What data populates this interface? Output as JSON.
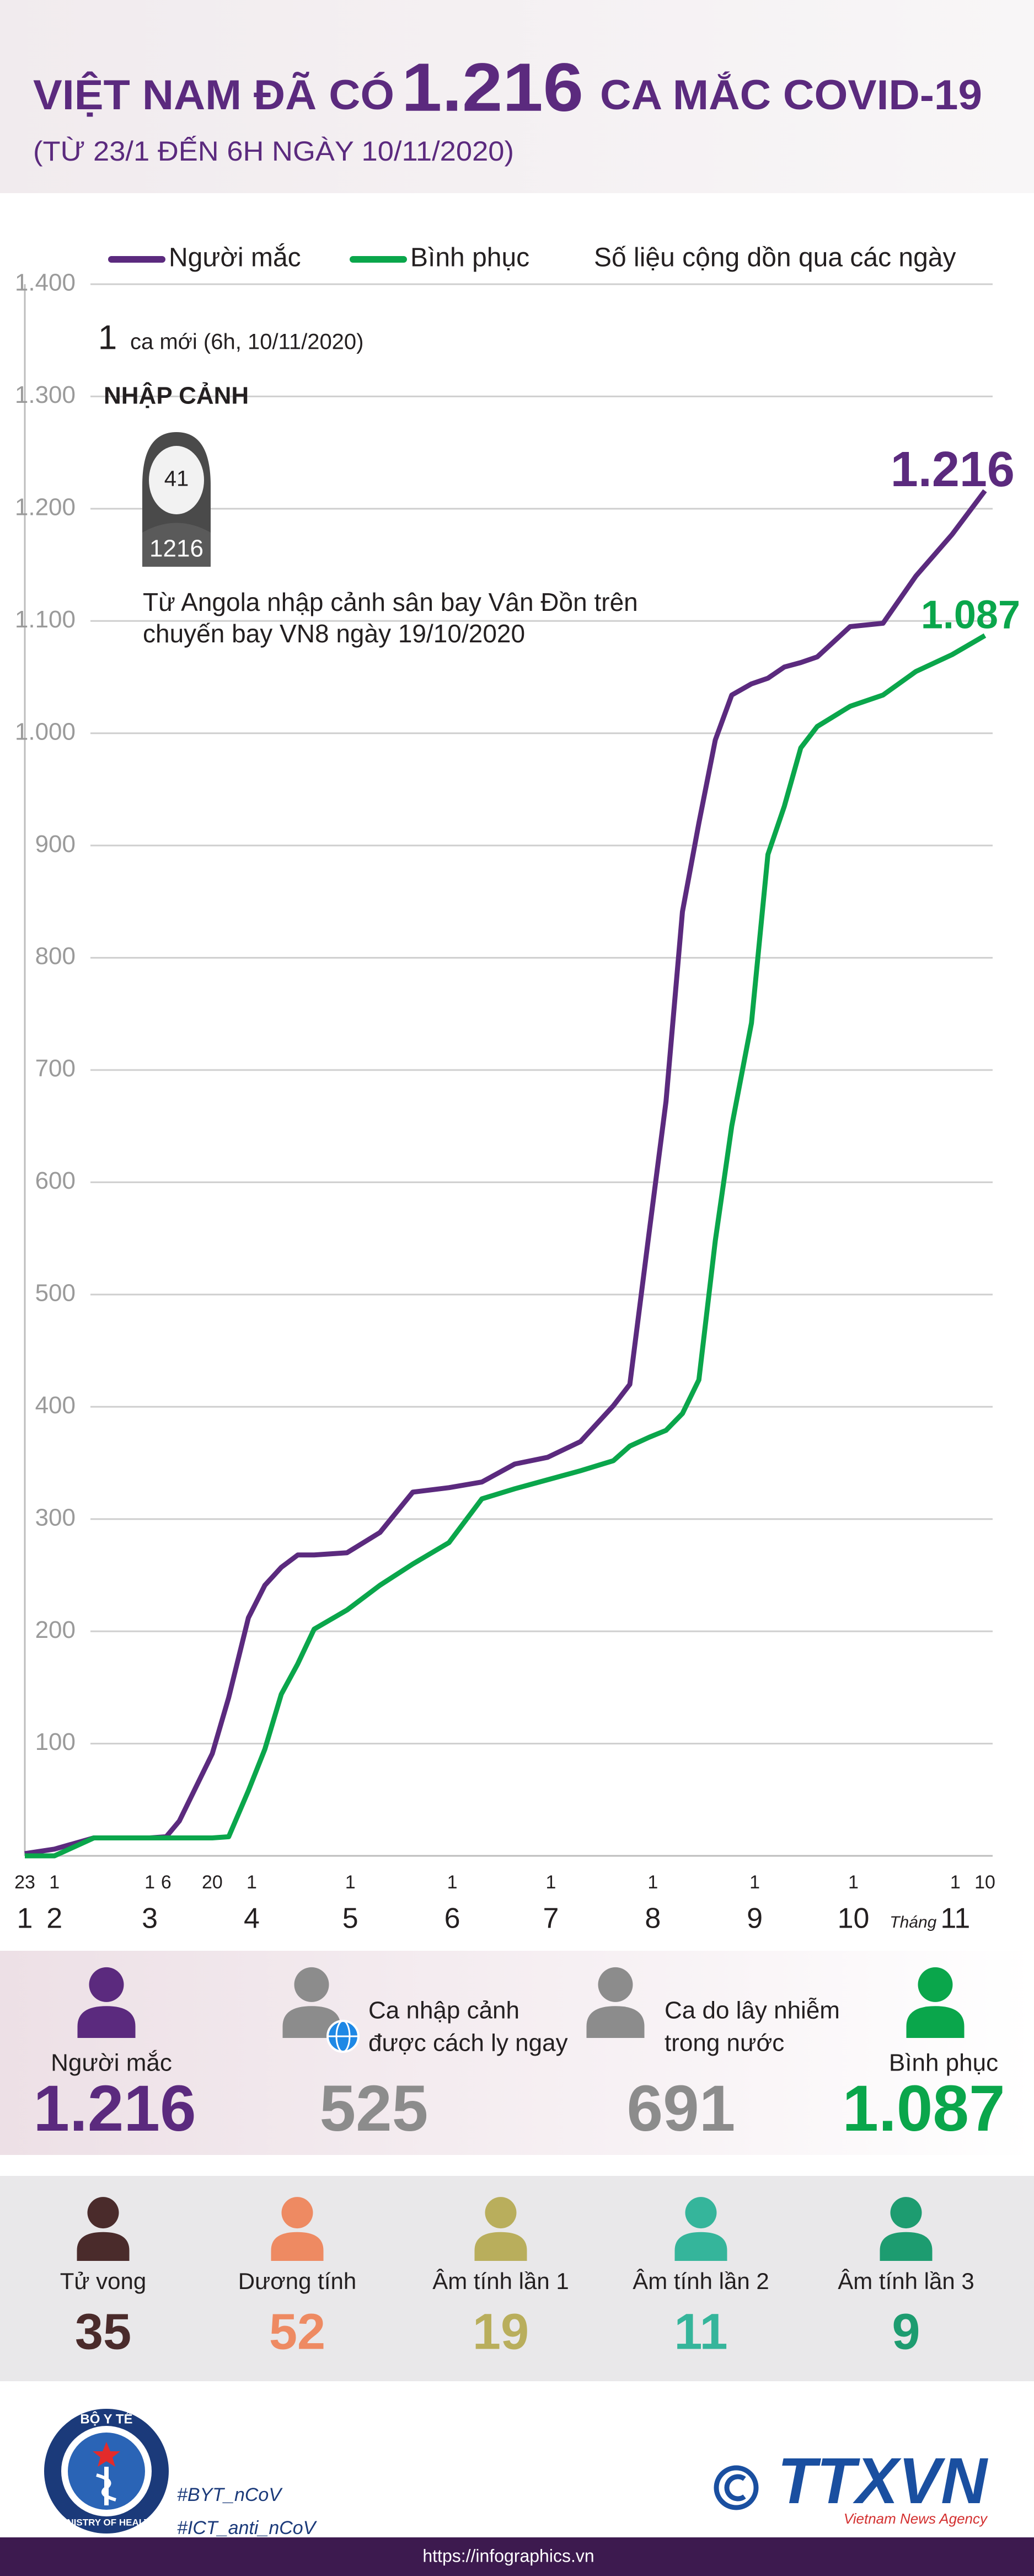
{
  "header": {
    "title_parts": [
      "VIỆT NAM ĐÃ CÓ",
      "1.216",
      "CA MẮC COVID-19"
    ],
    "subtitle": "(TỪ 23/1 ĐẾN 6H NGÀY 10/11/2020)"
  },
  "chart_data": {
    "type": "line",
    "legend_note": "Số liệu cộng dồn qua các ngày",
    "x": [
      "23/1",
      "1/2",
      "13/2",
      "1/3",
      "6/3",
      "10/3",
      "20/3",
      "25/3",
      "31/3",
      "5/4",
      "10/4",
      "15/4",
      "20/4",
      "30/4",
      "10/5",
      "20/5",
      "31/5",
      "10/6",
      "20/6",
      "30/6",
      "10/7",
      "20/7",
      "25/7",
      "31/7",
      "5/8",
      "10/8",
      "15/8",
      "20/8",
      "25/8",
      "31/8",
      "5/9",
      "10/9",
      "15/9",
      "20/9",
      "30/9",
      "10/10",
      "20/10",
      "31/10",
      "10/11"
    ],
    "xlim": [
      "23/1",
      "10/11"
    ],
    "series": [
      {
        "name": "Người mắc",
        "color": "#5b2a7e",
        "values": [
          2,
          6,
          16,
          16,
          17,
          31,
          91,
          141,
          212,
          241,
          257,
          268,
          268,
          270,
          288,
          324,
          328,
          333,
          349,
          355,
          369,
          401,
          420,
          558,
          672,
          841,
          920,
          994,
          1034,
          1044,
          1049,
          1059,
          1063,
          1068,
          1095,
          1098,
          1140,
          1177,
          1216
        ],
        "value_labels": [
          null,
          null,
          null,
          null,
          null,
          null,
          null,
          null,
          null,
          null,
          null,
          null,
          null,
          null,
          null,
          null,
          null,
          null,
          null,
          null,
          null,
          null,
          null,
          null,
          null,
          null,
          null,
          null,
          null,
          null,
          null,
          null,
          null,
          null,
          null,
          null,
          null,
          null,
          "1.216"
        ]
      },
      {
        "name": "Bình phục",
        "color": "#0aa64b",
        "values": [
          0,
          0,
          16,
          16,
          16,
          16,
          16,
          17,
          58,
          95,
          144,
          171,
          202,
          219,
          241,
          260,
          279,
          318,
          327,
          335,
          343,
          352,
          365,
          373,
          379,
          394,
          424,
          548,
          650,
          742,
          892,
          935,
          987,
          1006,
          1024,
          1034,
          1055,
          1070,
          1087
        ],
        "value_labels": [
          null,
          null,
          null,
          null,
          null,
          null,
          null,
          null,
          null,
          null,
          null,
          null,
          null,
          null,
          null,
          null,
          null,
          null,
          null,
          null,
          null,
          null,
          null,
          null,
          null,
          null,
          null,
          null,
          null,
          null,
          null,
          null,
          null,
          null,
          null,
          null,
          null,
          null,
          "1.087"
        ]
      }
    ],
    "ylim": [
      0,
      1400
    ],
    "yticks": [
      100,
      200,
      300,
      400,
      500,
      600,
      700,
      800,
      900,
      {
        "value": 1000,
        "label": "1.000"
      },
      {
        "value": 1100,
        "label": "1.100"
      },
      {
        "value": 1200,
        "label": "1.200"
      },
      {
        "value": 1300,
        "label": "1.300"
      },
      {
        "value": 1400,
        "label": "1.400"
      }
    ],
    "grid": true,
    "xticks": [
      {
        "value": "23/1",
        "label": "23"
      },
      {
        "value": "1/2",
        "label": "1"
      },
      {
        "value": "1/3",
        "label": "1"
      },
      {
        "value": "6/3",
        "label": "6"
      },
      {
        "value": "20/3",
        "label": "20"
      },
      {
        "value": "1/4",
        "label": "1"
      },
      {
        "value": "1/5",
        "label": "1"
      },
      {
        "value": "1/6",
        "label": "1"
      },
      {
        "value": "1/7",
        "label": "1"
      },
      {
        "value": "1/8",
        "label": "1"
      },
      {
        "value": "1/9",
        "label": "1"
      },
      {
        "value": "1/10",
        "label": "1"
      },
      {
        "value": "1/11",
        "label": "1"
      },
      {
        "value": "10/11",
        "label": "10"
      }
    ],
    "month_ticks": [
      {
        "value": "23/1",
        "label": "1"
      },
      {
        "value": "1/2",
        "label": "2"
      },
      {
        "value": "1/3",
        "label": "3"
      },
      {
        "value": "1/4",
        "label": "4"
      },
      {
        "value": "1/5",
        "label": "5"
      },
      {
        "value": "1/6",
        "label": "6"
      },
      {
        "value": "1/7",
        "label": "7"
      },
      {
        "value": "1/8",
        "label": "8"
      },
      {
        "value": "1/9",
        "label": "9"
      },
      {
        "value": "1/10",
        "label": "10"
      },
      {
        "value": "1/11",
        "label": "11"
      }
    ],
    "x_label": "Tháng",
    "annotation": {
      "new_count": 1,
      "new_text": "ca mới (6h, 10/11/2020)",
      "heading": "NHẬP CẢNH",
      "patient_number": 41,
      "case_number": 1216,
      "description": [
        "Từ Angola nhập cảnh sân bay Vân Đồn trên",
        "chuyến bay VN8 ngày 19/10/2020"
      ]
    }
  },
  "stats_main": [
    {
      "label": [
        "Người mắc"
      ],
      "value": "1.216",
      "color": "#5b2a7e"
    },
    {
      "label": [
        "Ca nhập cảnh",
        "được cách ly ngay"
      ],
      "value": "525",
      "color": "#8c8c8c"
    },
    {
      "label": [
        "Ca do lây nhiễm",
        "trong nước"
      ],
      "value": "691",
      "color": "#8c8c8c"
    },
    {
      "label": [
        "Bình phục"
      ],
      "value": "1.087",
      "color": "#0aa64b"
    }
  ],
  "stats_tests": [
    {
      "label": "Tử vong",
      "value": 35,
      "color": "#4a2b2b"
    },
    {
      "label": "Dương tính",
      "value": 52,
      "color": "#ee8a62"
    },
    {
      "label": "Âm tính lần 1",
      "value": 19,
      "color": "#b9ae5c"
    },
    {
      "label": "Âm tính lần 2",
      "value": 11,
      "color": "#35b59b"
    },
    {
      "label": "Âm tính lần 3",
      "value": 9,
      "color": "#1d9c70"
    }
  ],
  "footer": {
    "ministry_vi": "BỘ Y TẾ",
    "ministry_en": "MINISTRY OF HEALTH",
    "hashtags": [
      "#BYT_nCoV",
      "#ICT_anti_nCoV"
    ],
    "agency": "TTXVN",
    "agency_en": "Vietnam News Agency",
    "url": "https://infographics.vn"
  }
}
